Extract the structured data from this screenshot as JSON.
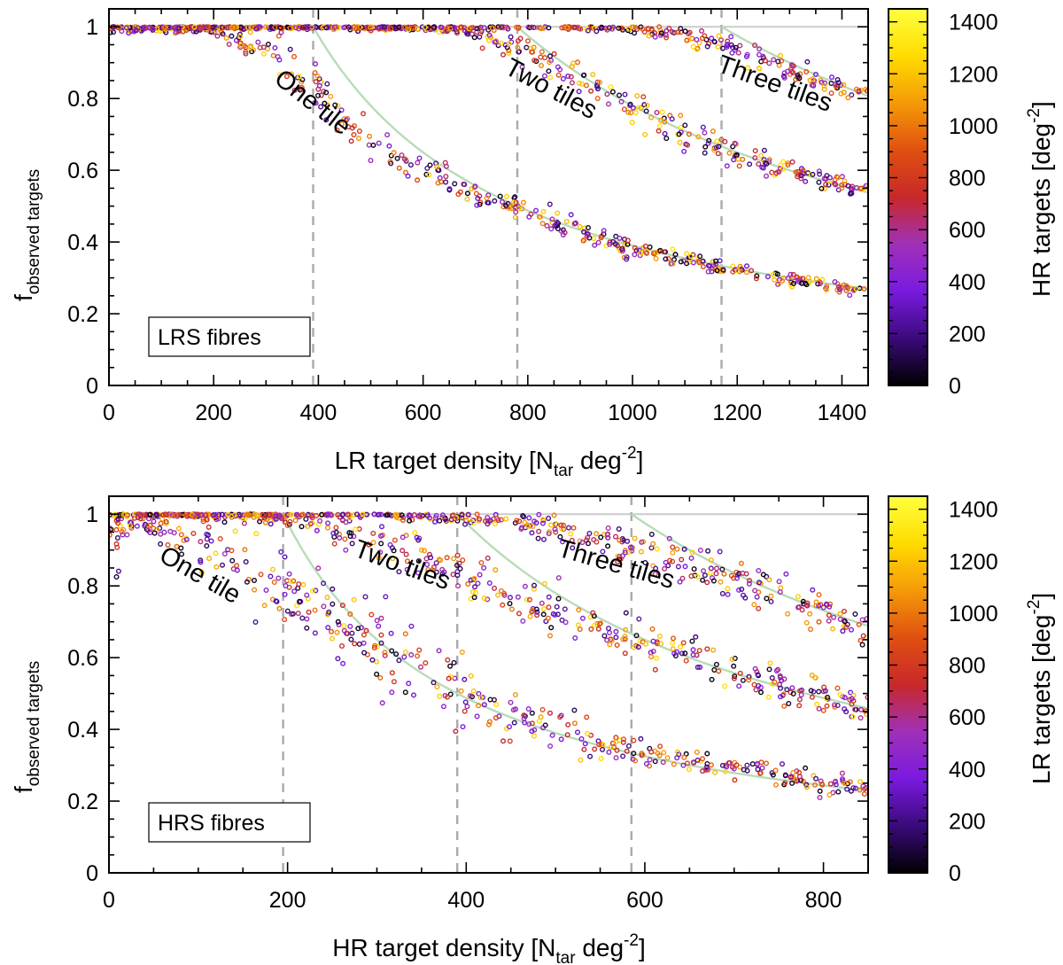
{
  "chart_data": [
    {
      "type": "scatter",
      "panel": "top",
      "ylabel_main": "f",
      "ylabel_sub": "observed targets",
      "xlabel_main": "LR target density [N",
      "xlabel_sub": "tar",
      "xlabel_mid": " deg",
      "xlabel_sup": "-2",
      "xlabel_end": "]",
      "xlim": [
        0,
        1450
      ],
      "ylim": [
        0,
        1.05
      ],
      "xticks": [
        0,
        200,
        400,
        600,
        800,
        1000,
        1200,
        1400
      ],
      "yticks": [
        0,
        0.2,
        0.4,
        0.6,
        0.8,
        1
      ],
      "ytick_labels": [
        "0",
        "0.2",
        "0.4",
        "0.6",
        "0.8",
        "1"
      ],
      "vlines": [
        390,
        780,
        1170
      ],
      "legend_text": "LRS fibres",
      "legend_position": "bottom-left",
      "colorbar": {
        "label_main": "HR targets [deg",
        "label_sup": "-2",
        "label_end": "]",
        "range": [
          0,
          1450
        ],
        "ticks": [
          0,
          200,
          400,
          600,
          800,
          1000,
          1200,
          1400
        ],
        "colormap": [
          "#000000",
          "#3a0a7a",
          "#7a1ae0",
          "#a030b8",
          "#c8282a",
          "#e05010",
          "#f59a08",
          "#ffdc00",
          "#ffff40"
        ]
      },
      "series": [
        {
          "name": "One tile",
          "label": "One tile",
          "capacity": 390,
          "x": [
            0,
            100,
            200,
            300,
            350,
            400,
            450,
            500,
            550,
            600,
            650,
            700,
            750,
            800,
            900,
            1000,
            1100,
            1200,
            1300,
            1420
          ],
          "y": [
            0.99,
            0.995,
            0.985,
            0.93,
            0.88,
            0.81,
            0.74,
            0.69,
            0.64,
            0.6,
            0.56,
            0.53,
            0.51,
            0.49,
            0.43,
            0.38,
            0.35,
            0.32,
            0.295,
            0.27
          ]
        },
        {
          "name": "Two tiles",
          "label": "Two tiles",
          "capacity": 780,
          "x": [
            0,
            200,
            400,
            600,
            700,
            750,
            800,
            850,
            900,
            950,
            1000,
            1050,
            1100,
            1150,
            1200,
            1300,
            1420
          ],
          "y": [
            1.0,
            1.0,
            1.0,
            0.995,
            0.985,
            0.96,
            0.93,
            0.89,
            0.85,
            0.815,
            0.78,
            0.74,
            0.7,
            0.67,
            0.645,
            0.6,
            0.55
          ]
        },
        {
          "name": "Three tiles",
          "label": "Three tiles",
          "capacity": 1170,
          "x": [
            0,
            400,
            800,
            1000,
            1100,
            1150,
            1200,
            1250,
            1300,
            1350,
            1420
          ],
          "y": [
            1.0,
            1.0,
            1.0,
            0.995,
            0.98,
            0.96,
            0.94,
            0.91,
            0.88,
            0.85,
            0.82
          ]
        }
      ]
    },
    {
      "type": "scatter",
      "panel": "bottom",
      "ylabel_main": "f",
      "ylabel_sub": "observed targets",
      "xlabel_main": "HR target density [N",
      "xlabel_sub": "tar",
      "xlabel_mid": " deg",
      "xlabel_sup": "-2",
      "xlabel_end": "]",
      "xlim": [
        0,
        850
      ],
      "ylim": [
        0,
        1.05
      ],
      "xticks": [
        0,
        200,
        400,
        600,
        800
      ],
      "yticks": [
        0,
        0.2,
        0.4,
        0.6,
        0.8,
        1
      ],
      "ytick_labels": [
        "0",
        "0.2",
        "0.4",
        "0.6",
        "0.8",
        "1"
      ],
      "vlines": [
        195,
        390,
        585
      ],
      "legend_text": "HRS fibres",
      "legend_position": "bottom-left",
      "colorbar": {
        "label_main": "LR targets [deg",
        "label_sup": "-2",
        "label_end": "]",
        "range": [
          0,
          1450
        ],
        "ticks": [
          0,
          200,
          400,
          600,
          800,
          1000,
          1200,
          1400
        ],
        "colormap": [
          "#000000",
          "#3a0a7a",
          "#7a1ae0",
          "#a030b8",
          "#c8282a",
          "#e05010",
          "#f59a08",
          "#ffdc00",
          "#ffff40"
        ]
      },
      "series": [
        {
          "name": "One tile",
          "label": "One tile",
          "capacity": 195,
          "x": [
            0,
            20,
            50,
            100,
            150,
            200,
            250,
            300,
            350,
            400,
            450,
            500,
            550,
            600,
            700,
            800,
            850
          ],
          "y": [
            0.93,
            0.98,
            0.97,
            0.92,
            0.86,
            0.78,
            0.7,
            0.64,
            0.56,
            0.49,
            0.44,
            0.4,
            0.36,
            0.33,
            0.29,
            0.25,
            0.235
          ]
        },
        {
          "name": "Two tiles",
          "label": "Two tiles",
          "capacity": 390,
          "x": [
            0,
            50,
            100,
            200,
            250,
            300,
            350,
            400,
            450,
            500,
            550,
            600,
            650,
            700,
            800,
            850
          ],
          "y": [
            0.97,
            1.0,
            1.0,
            0.985,
            0.96,
            0.92,
            0.87,
            0.83,
            0.78,
            0.72,
            0.68,
            0.65,
            0.61,
            0.57,
            0.49,
            0.46
          ]
        },
        {
          "name": "Three tiles",
          "label": "Three tiles",
          "capacity": 585,
          "x": [
            0,
            100,
            200,
            300,
            400,
            450,
            500,
            550,
            600,
            650,
            700,
            750,
            800,
            850
          ],
          "y": [
            1.0,
            1.0,
            1.0,
            1.0,
            0.99,
            0.98,
            0.955,
            0.93,
            0.9,
            0.86,
            0.82,
            0.77,
            0.73,
            0.68
          ]
        }
      ]
    }
  ]
}
